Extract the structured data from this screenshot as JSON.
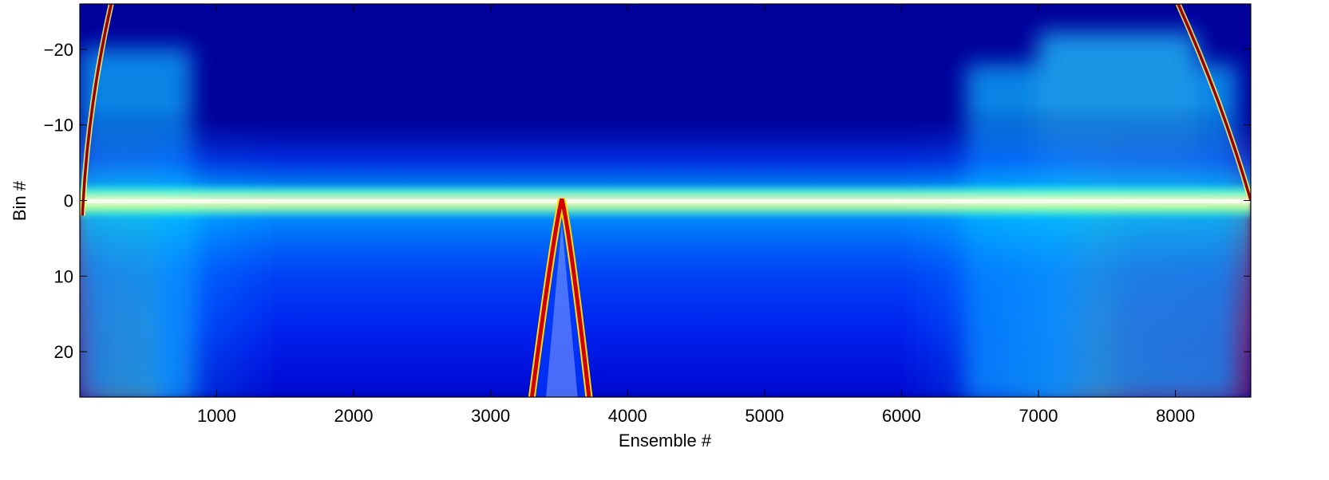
{
  "chart_data": {
    "type": "heatmap",
    "title": "",
    "xlabel": "Ensemble #",
    "ylabel": "Bin #",
    "xlim": [
      1,
      8550
    ],
    "ylim": [
      26,
      -26
    ],
    "y_reversed": true,
    "xticks": [
      1000,
      2000,
      3000,
      4000,
      5000,
      6000,
      7000,
      8000
    ],
    "yticks": [
      -20,
      -10,
      0,
      10,
      20
    ],
    "colormap": "jet",
    "grid": false,
    "legend": "none",
    "features": [
      {
        "name": "central band",
        "bin": 0,
        "x_range": [
          1,
          8550
        ]
      },
      {
        "name": "V-shaped arc",
        "apex_x": 3520,
        "apex_bin": 0,
        "base_x": [
          3300,
          3720
        ],
        "base_bin": 26
      },
      {
        "name": "left diagonal line",
        "from": [
          20,
          2
        ],
        "to": [
          230,
          -26
        ]
      },
      {
        "name": "right diagonal line",
        "from": [
          8020,
          -26
        ],
        "to": [
          8550,
          0
        ]
      },
      {
        "name": "high-intensity region left",
        "x_range": [
          1,
          650
        ],
        "bin_range": [
          -3,
          18
        ]
      },
      {
        "name": "high-intensity region right",
        "x_range": [
          7250,
          8550
        ],
        "bin_range": [
          -3,
          18
        ]
      }
    ]
  }
}
